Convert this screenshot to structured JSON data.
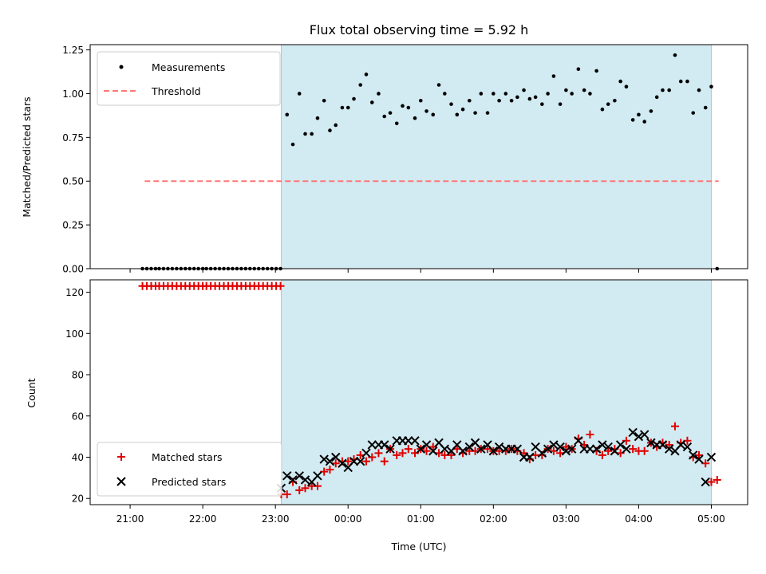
{
  "chart_data": [
    {
      "type": "scatter",
      "title": "Flux total observing time = 5.92 h",
      "ylabel": "Matched/Predicted stars",
      "ylim": [
        0,
        1.28
      ],
      "yticks": [
        0.0,
        0.25,
        0.5,
        0.75,
        1.0,
        1.25
      ],
      "ytick_labels": [
        "0.00",
        "0.25",
        "0.50",
        "0.75",
        "1.00",
        "1.25"
      ],
      "xlim_hours": [
        -3.55,
        5.5
      ],
      "observing_window_hours": [
        -0.92,
        5.0
      ],
      "threshold": {
        "value": 0.5,
        "x_range_hours": [
          -2.8,
          5.1
        ],
        "color": "#ff7777"
      },
      "legend": {
        "position": "top-left",
        "entries": [
          "Measurements",
          "Threshold"
        ]
      },
      "x_hours": [
        -2.83,
        -2.77,
        -2.71,
        -2.65,
        -2.6,
        -2.54,
        -2.48,
        -2.42,
        -2.36,
        -2.3,
        -2.24,
        -2.18,
        -2.12,
        -2.06,
        -2.0,
        -1.95,
        -1.89,
        -1.83,
        -1.77,
        -1.71,
        -1.65,
        -1.59,
        -1.53,
        -1.47,
        -1.41,
        -1.35,
        -1.29,
        -1.23,
        -1.17,
        -1.11,
        -1.05,
        -0.99,
        -0.93,
        -0.84,
        -0.76,
        -0.67,
        -0.59,
        -0.5,
        -0.42,
        -0.33,
        -0.25,
        -0.17,
        -0.08,
        0.0,
        0.08,
        0.17,
        0.25,
        0.33,
        0.42,
        0.5,
        0.58,
        0.67,
        0.75,
        0.83,
        0.92,
        1.0,
        1.08,
        1.17,
        1.25,
        1.33,
        1.42,
        1.5,
        1.58,
        1.67,
        1.75,
        1.83,
        1.92,
        2.0,
        2.08,
        2.17,
        2.25,
        2.33,
        2.42,
        2.5,
        2.58,
        2.67,
        2.75,
        2.83,
        2.92,
        3.0,
        3.08,
        3.17,
        3.25,
        3.33,
        3.42,
        3.5,
        3.58,
        3.67,
        3.75,
        3.83,
        3.92,
        4.0,
        4.08,
        4.17,
        4.25,
        4.33,
        4.42,
        4.5,
        4.58,
        4.67,
        4.75,
        4.83,
        4.92,
        5.0,
        5.08
      ],
      "ratio": [
        0,
        0,
        0,
        0,
        0,
        0,
        0,
        0,
        0,
        0,
        0,
        0,
        0,
        0,
        0,
        0,
        0,
        0,
        0,
        0,
        0,
        0,
        0,
        0,
        0,
        0,
        0,
        0,
        0,
        0,
        0,
        0,
        0,
        0.88,
        0.71,
        1.0,
        0.77,
        0.77,
        0.86,
        0.96,
        0.79,
        0.82,
        0.92,
        0.92,
        0.97,
        1.05,
        1.11,
        0.95,
        1.0,
        0.87,
        0.89,
        0.83,
        0.93,
        0.92,
        0.86,
        0.96,
        0.9,
        0.88,
        1.05,
        1.0,
        0.94,
        0.88,
        0.91,
        0.96,
        0.89,
        1.0,
        0.89,
        1.0,
        0.96,
        1.0,
        0.96,
        0.98,
        1.02,
        0.97,
        0.98,
        0.94,
        1.0,
        1.1,
        0.94,
        1.02,
        1.0,
        1.14,
        1.02,
        1.0,
        1.13,
        0.91,
        0.94,
        0.96,
        1.07,
        1.04,
        0.85,
        0.88,
        0.84,
        0.9,
        0.98,
        1.02,
        1.02,
        1.22,
        1.07,
        1.07,
        0.89,
        1.02,
        0.92,
        1.04,
        0
      ]
    },
    {
      "type": "scatter",
      "xlabel": "Time (UTC)",
      "ylabel": "Count",
      "ylim": [
        17,
        126
      ],
      "yticks": [
        20,
        40,
        60,
        80,
        100,
        120
      ],
      "ytick_labels": [
        "20",
        "40",
        "60",
        "80",
        "100",
        "120"
      ],
      "xticks_hours": [
        -3,
        -2,
        -1,
        0,
        1,
        2,
        3,
        4,
        5
      ],
      "xtick_labels": [
        "21:00",
        "22:00",
        "23:00",
        "00:00",
        "01:00",
        "02:00",
        "03:00",
        "04:00",
        "05:00"
      ],
      "legend": {
        "position": "bottom-left",
        "entries": [
          "Matched stars",
          "Predicted stars"
        ]
      },
      "series": [
        {
          "name": "Matched stars",
          "marker": "plus",
          "color": "#e00000",
          "x_hours": [
            -2.83,
            -2.77,
            -2.71,
            -2.65,
            -2.6,
            -2.54,
            -2.48,
            -2.42,
            -2.36,
            -2.3,
            -2.24,
            -2.18,
            -2.12,
            -2.06,
            -2.0,
            -1.95,
            -1.89,
            -1.83,
            -1.77,
            -1.71,
            -1.65,
            -1.59,
            -1.53,
            -1.47,
            -1.41,
            -1.35,
            -1.29,
            -1.23,
            -1.17,
            -1.11,
            -1.05,
            -0.99,
            -0.93,
            -0.92,
            -0.84,
            -0.76,
            -0.67,
            -0.59,
            -0.5,
            -0.42,
            -0.33,
            -0.25,
            -0.17,
            -0.08,
            0.0,
            0.08,
            0.17,
            0.25,
            0.33,
            0.42,
            0.5,
            0.58,
            0.67,
            0.75,
            0.83,
            0.92,
            1.0,
            1.08,
            1.17,
            1.25,
            1.33,
            1.42,
            1.5,
            1.58,
            1.67,
            1.75,
            1.83,
            1.92,
            2.0,
            2.08,
            2.17,
            2.25,
            2.33,
            2.42,
            2.5,
            2.58,
            2.67,
            2.75,
            2.83,
            2.92,
            3.0,
            3.08,
            3.17,
            3.25,
            3.33,
            3.42,
            3.5,
            3.58,
            3.67,
            3.75,
            3.83,
            3.92,
            4.0,
            4.08,
            4.17,
            4.25,
            4.33,
            4.42,
            4.5,
            4.58,
            4.67,
            4.75,
            4.83,
            4.92,
            5.0,
            5.08
          ],
          "values": [
            123,
            123,
            123,
            123,
            123,
            123,
            123,
            123,
            123,
            123,
            123,
            123,
            123,
            123,
            123,
            123,
            123,
            123,
            123,
            123,
            123,
            123,
            123,
            123,
            123,
            123,
            123,
            123,
            123,
            123,
            123,
            123,
            123,
            22,
            22,
            28,
            24,
            25,
            26,
            26,
            33,
            34,
            37,
            38,
            38,
            39,
            41,
            38,
            40,
            42,
            38,
            44,
            41,
            42,
            44,
            42,
            44,
            43,
            45,
            42,
            41,
            41,
            44,
            42,
            43,
            43,
            44,
            44,
            43,
            43,
            43,
            44,
            43,
            42,
            39,
            41,
            41,
            44,
            43,
            42,
            45,
            44,
            49,
            46,
            51,
            43,
            41,
            43,
            44,
            42,
            48,
            44,
            43,
            43,
            47,
            45,
            47,
            46,
            55,
            47,
            48,
            40,
            41,
            37,
            28,
            29
          ]
        },
        {
          "name": "Predicted stars",
          "marker": "x",
          "color": "#000000",
          "x_hours": [
            -0.92,
            -0.84,
            -0.76,
            -0.67,
            -0.59,
            -0.5,
            -0.42,
            -0.33,
            -0.25,
            -0.17,
            -0.08,
            0.0,
            0.08,
            0.17,
            0.25,
            0.33,
            0.42,
            0.5,
            0.58,
            0.67,
            0.75,
            0.83,
            0.92,
            1.0,
            1.08,
            1.17,
            1.25,
            1.33,
            1.42,
            1.5,
            1.58,
            1.67,
            1.75,
            1.83,
            1.92,
            2.0,
            2.08,
            2.17,
            2.25,
            2.33,
            2.42,
            2.5,
            2.58,
            2.67,
            2.75,
            2.83,
            2.92,
            3.0,
            3.08,
            3.17,
            3.25,
            3.33,
            3.42,
            3.5,
            3.58,
            3.67,
            3.75,
            3.83,
            3.92,
            4.0,
            4.08,
            4.17,
            4.25,
            4.33,
            4.42,
            4.5,
            4.58,
            4.67,
            4.75,
            4.83,
            4.92,
            5.0
          ],
          "values": [
            25,
            31,
            29,
            31,
            29,
            28,
            31,
            39,
            38,
            40,
            37,
            35,
            38,
            38,
            42,
            46,
            46,
            46,
            44,
            48,
            48,
            48,
            48,
            44,
            46,
            43,
            47,
            44,
            43,
            46,
            43,
            45,
            47,
            44,
            46,
            43,
            45,
            44,
            44,
            44,
            40,
            40,
            45,
            42,
            44,
            46,
            45,
            43,
            44,
            48,
            44,
            44,
            44,
            46,
            45,
            43,
            46,
            44,
            52,
            50,
            51,
            47,
            46,
            46,
            44,
            43,
            46,
            45,
            41,
            39,
            28,
            40
          ]
        }
      ],
      "observing_window_hours": [
        -0.92,
        5.0
      ]
    }
  ],
  "colors": {
    "observing_window": "#add8e6",
    "threshold": "#ff7777",
    "matched": "#e00000",
    "predicted": "#000000"
  }
}
